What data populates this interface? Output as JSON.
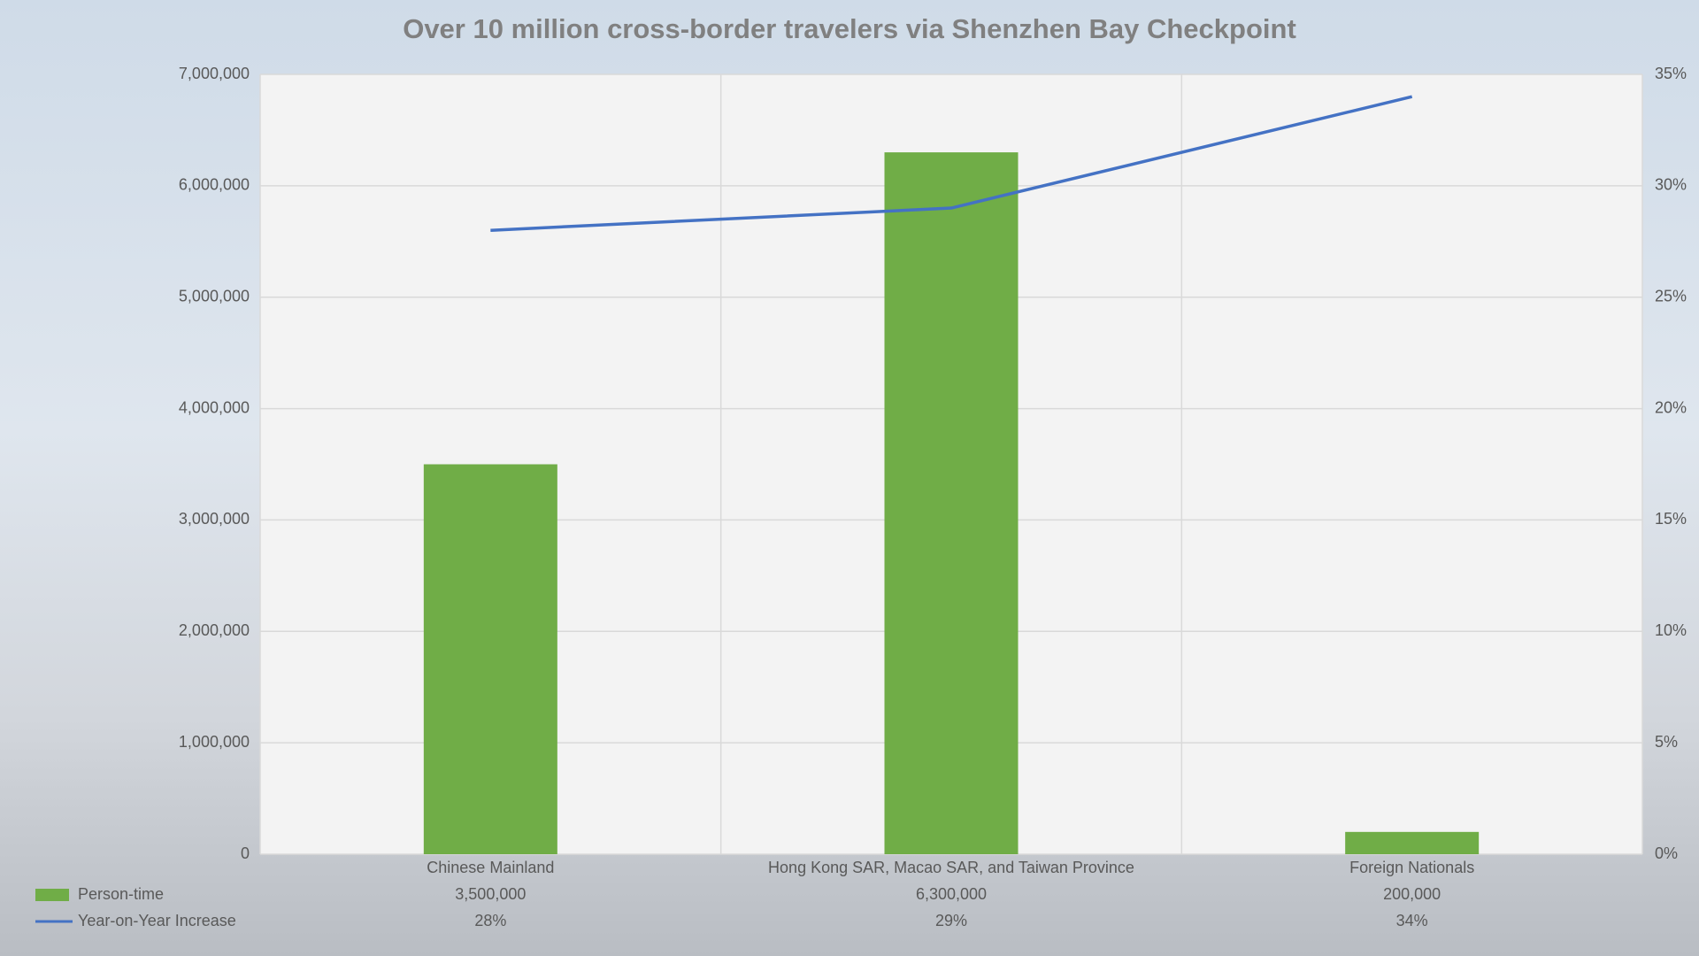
{
  "chart_data": {
    "type": "bar",
    "title": "Over 10 million cross-border travelers via Shenzhen Bay Checkpoint",
    "categories": [
      "Chinese Mainland",
      "Hong Kong SAR, Macao SAR, and Taiwan Province",
      "Foreign Nationals"
    ],
    "series": [
      {
        "name": "Person-time",
        "type": "bar",
        "color": "#70ad47",
        "values": [
          3500000,
          6300000,
          200000
        ],
        "value_labels": [
          "3,500,000",
          "6,300,000",
          "200,000"
        ]
      },
      {
        "name": "Year-on-Year Increase",
        "type": "line",
        "axis": "y2",
        "color": "#4472c4",
        "values": [
          28,
          29,
          34
        ],
        "value_labels": [
          "28%",
          "29%",
          "34%"
        ]
      }
    ],
    "ylim": [
      0,
      7000000
    ],
    "yticks": [
      0,
      {
        "value": 1000000,
        "label": "1,000,000"
      },
      {
        "value": 2000000,
        "label": "2,000,000"
      },
      {
        "value": 3000000,
        "label": "3,000,000"
      },
      {
        "value": 4000000,
        "label": "4,000,000"
      },
      {
        "value": 5000000,
        "label": "5,000,000"
      },
      {
        "value": 6000000,
        "label": "6,000,000"
      },
      {
        "value": 7000000,
        "label": "7,000,000"
      }
    ],
    "y2lim": [
      0,
      35
    ],
    "y2ticks": [
      {
        "value": 0,
        "label": "0%"
      },
      {
        "value": 5,
        "label": "5%"
      },
      {
        "value": 10,
        "label": "10%"
      },
      {
        "value": 15,
        "label": "15%"
      },
      {
        "value": 20,
        "label": "20%"
      },
      {
        "value": 25,
        "label": "25%"
      },
      {
        "value": 30,
        "label": "30%"
      },
      {
        "value": 35,
        "label": "35%"
      }
    ],
    "grid": true
  }
}
